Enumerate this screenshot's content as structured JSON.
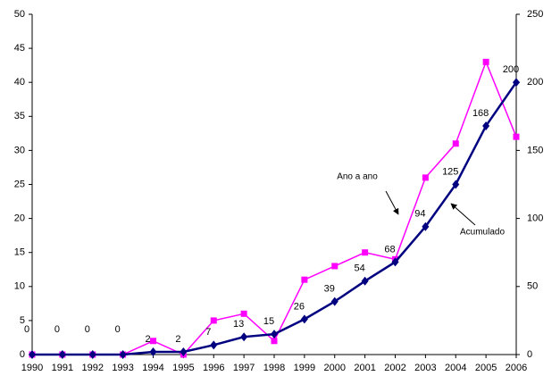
{
  "chart_data": {
    "type": "line",
    "categories": [
      "1990",
      "1991",
      "1992",
      "1993",
      "1994",
      "1995",
      "1996",
      "1997",
      "1998",
      "1999",
      "2000",
      "2001",
      "2002",
      "2003",
      "2004",
      "2005",
      "2006"
    ],
    "series": [
      {
        "name": "Ano a ano",
        "color": "#ff00ff",
        "marker": "square",
        "values": [
          0,
          0,
          0,
          0,
          2,
          0,
          5,
          6,
          2,
          11,
          13,
          15,
          14,
          26,
          31,
          43,
          32
        ]
      },
      {
        "name": "Acumulado",
        "color": "#000080",
        "marker": "diamond",
        "axis": "y2",
        "values": [
          0,
          0,
          0,
          0,
          2,
          2,
          7,
          13,
          15,
          26,
          39,
          54,
          68,
          94,
          125,
          168,
          200
        ],
        "data_labels": true
      }
    ],
    "ylim": [
      0,
      50
    ],
    "yticks": [
      0,
      5,
      10,
      15,
      20,
      25,
      30,
      35,
      40,
      45,
      50
    ],
    "y2lim": [
      0,
      250
    ],
    "y2ticks": [
      0,
      50,
      100,
      150,
      200,
      250
    ],
    "grid": false
  }
}
